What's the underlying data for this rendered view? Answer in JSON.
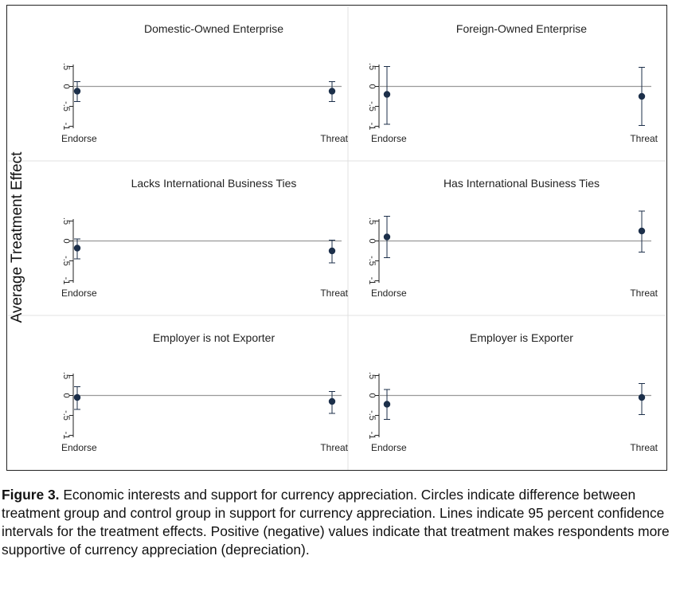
{
  "chart_data": {
    "type": "scatter",
    "ylabel": "Average Treatment Effect",
    "categories": [
      "Endorse",
      "Threat"
    ],
    "yticks": [
      "-1",
      "-.5",
      "0",
      ".5"
    ],
    "ylim": [
      -1.1,
      0.65
    ],
    "reference_line": 0,
    "panels": [
      {
        "title": "Domestic-Owned Enterprise",
        "points": [
          {
            "x": "Endorse",
            "y": -0.12,
            "ci": [
              -0.38,
              0.12
            ]
          },
          {
            "x": "Threat",
            "y": -0.12,
            "ci": [
              -0.38,
              0.12
            ]
          }
        ]
      },
      {
        "title": "Foreign-Owned Enterprise",
        "points": [
          {
            "x": "Endorse",
            "y": -0.2,
            "ci": [
              -0.95,
              0.5
            ]
          },
          {
            "x": "Threat",
            "y": -0.25,
            "ci": [
              -0.98,
              0.48
            ]
          }
        ]
      },
      {
        "title": "Lacks International Business Ties",
        "points": [
          {
            "x": "Endorse",
            "y": -0.18,
            "ci": [
              -0.45,
              0.05
            ]
          },
          {
            "x": "Threat",
            "y": -0.25,
            "ci": [
              -0.55,
              0.02
            ]
          }
        ]
      },
      {
        "title": "Has International Business Ties",
        "points": [
          {
            "x": "Endorse",
            "y": 0.1,
            "ci": [
              -0.42,
              0.62
            ]
          },
          {
            "x": "Threat",
            "y": 0.25,
            "ci": [
              -0.28,
              0.75
            ]
          }
        ]
      },
      {
        "title": "Employer is not Exporter",
        "points": [
          {
            "x": "Endorse",
            "y": -0.05,
            "ci": [
              -0.35,
              0.22
            ]
          },
          {
            "x": "Threat",
            "y": -0.15,
            "ci": [
              -0.45,
              0.1
            ]
          }
        ]
      },
      {
        "title": "Employer is Exporter",
        "points": [
          {
            "x": "Endorse",
            "y": -0.22,
            "ci": [
              -0.6,
              0.15
            ]
          },
          {
            "x": "Threat",
            "y": -0.05,
            "ci": [
              -0.48,
              0.3
            ]
          }
        ]
      }
    ]
  },
  "caption": {
    "label": "Figure 3.",
    "text": " Economic interests and support for currency appreciation. Circles indicate difference between treatment group and control group in support for currency appreciation. Lines indicate 95 percent confidence intervals for the treatment effects. Positive (negative) values indicate that treatment makes respondents more supportive of currency appreciation (depreciation)."
  },
  "colors": {
    "point": "#1c2f4a",
    "ci_line": "#1c2f4a",
    "ref_line": "#9a9a9a",
    "divider": "#e0e0e0",
    "axis": "#222222"
  }
}
